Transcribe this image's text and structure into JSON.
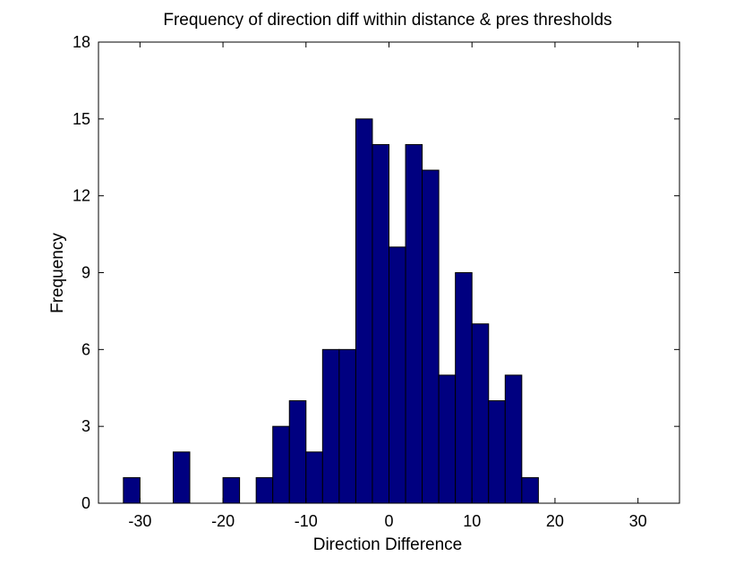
{
  "chart_data": {
    "type": "bar",
    "title": "Frequency of direction diff within distance & pres thresholds",
    "xlabel": "Direction Difference",
    "ylabel": "Frequency",
    "xlim": [
      -35,
      35
    ],
    "ylim": [
      0,
      18
    ],
    "xticks": [
      -30,
      -20,
      -10,
      0,
      10,
      20,
      30
    ],
    "yticks": [
      0,
      3,
      6,
      9,
      12,
      15,
      18
    ],
    "bin_width": 2,
    "bin_centers": [
      -31,
      -29,
      -27,
      -25,
      -23,
      -21,
      -19,
      -17,
      -15,
      -13,
      -11,
      -9,
      -7,
      -5,
      -3,
      -1,
      1,
      3,
      5,
      7,
      9,
      11,
      13,
      15,
      17,
      19,
      21,
      23,
      25,
      27,
      29,
      31
    ],
    "values": [
      1,
      0,
      0,
      2,
      0,
      0,
      1,
      0,
      1,
      3,
      4,
      2,
      6,
      6,
      15,
      14,
      10,
      14,
      13,
      5,
      9,
      7,
      4,
      5,
      1,
      0,
      0,
      0,
      0,
      0,
      0,
      0
    ],
    "bar_color": "#000080",
    "edge_color": "#000000",
    "grid": false,
    "legend": false
  }
}
